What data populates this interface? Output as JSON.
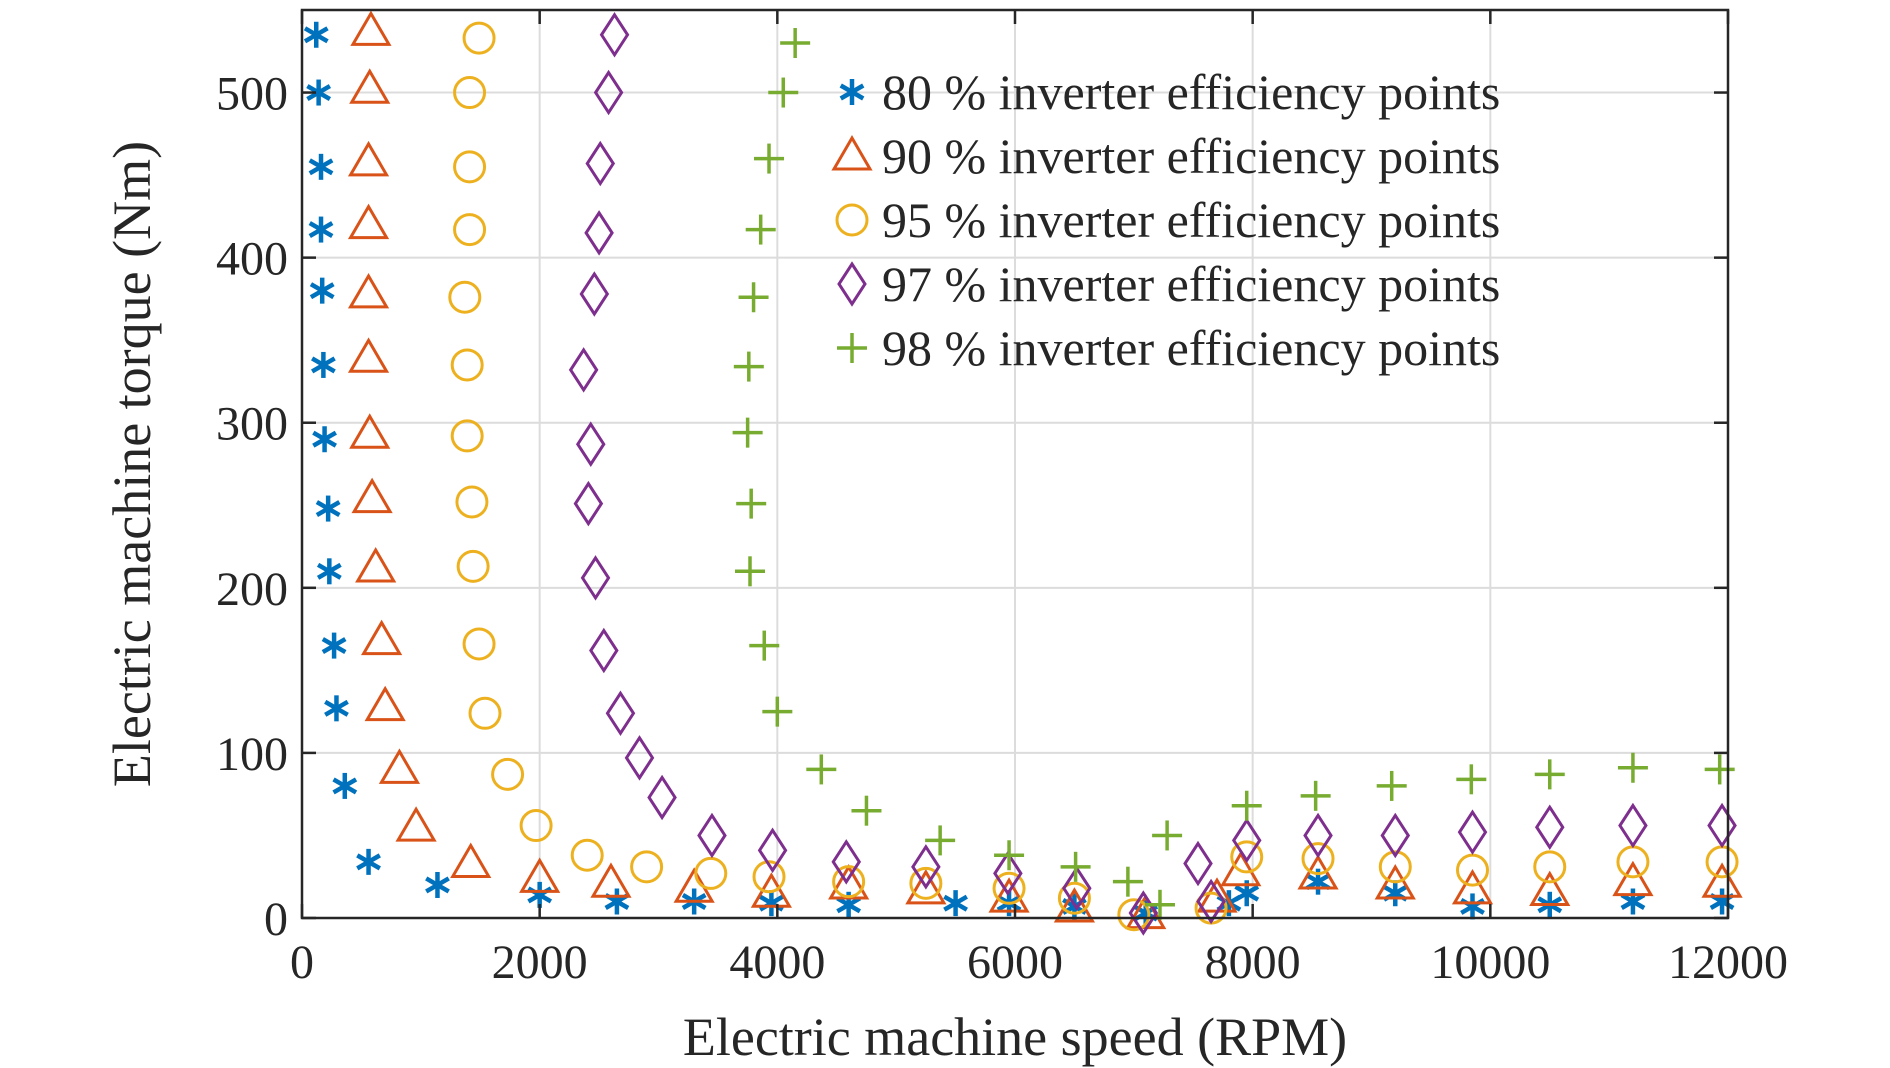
{
  "chart_data": {
    "type": "scatter",
    "xlabel": "Electric machine speed (RPM)",
    "ylabel": "Electric machine torque (Nm)",
    "xlim": [
      0,
      12000
    ],
    "ylim": [
      0,
      550
    ],
    "xticks": [
      0,
      2000,
      4000,
      6000,
      8000,
      10000,
      12000
    ],
    "yticks": [
      0,
      100,
      200,
      300,
      400,
      500
    ],
    "xtick_labels": [
      "0",
      "2000",
      "4000",
      "6000",
      "8000",
      "10000",
      "12000"
    ],
    "ytick_labels": [
      "0",
      "100",
      "200",
      "300",
      "400",
      "500"
    ],
    "grid": true,
    "legend_position": "top-right",
    "series": [
      {
        "name": "80 % inverter efficiency points",
        "marker": "asterisk",
        "color": "#0072BD",
        "points": [
          [
            120,
            535
          ],
          [
            140,
            500
          ],
          [
            160,
            455
          ],
          [
            160,
            417
          ],
          [
            170,
            380
          ],
          [
            180,
            335
          ],
          [
            190,
            290
          ],
          [
            220,
            248
          ],
          [
            230,
            210
          ],
          [
            270,
            165
          ],
          [
            290,
            127
          ],
          [
            360,
            80
          ],
          [
            560,
            34
          ],
          [
            1140,
            20
          ],
          [
            2000,
            14
          ],
          [
            2650,
            10
          ],
          [
            3300,
            10
          ],
          [
            3950,
            9
          ],
          [
            4600,
            8
          ],
          [
            5500,
            9
          ],
          [
            5950,
            9
          ],
          [
            6500,
            7
          ],
          [
            7100,
            3
          ],
          [
            7800,
            9
          ],
          [
            7950,
            15
          ],
          [
            8550,
            22
          ],
          [
            9200,
            15
          ],
          [
            9850,
            7
          ],
          [
            10500,
            8
          ],
          [
            11200,
            10
          ],
          [
            11950,
            10
          ]
        ]
      },
      {
        "name": "90 % inverter efficiency points",
        "marker": "triangle",
        "color": "#D95319",
        "points": [
          [
            580,
            537
          ],
          [
            570,
            502
          ],
          [
            560,
            458
          ],
          [
            560,
            420
          ],
          [
            560,
            378
          ],
          [
            560,
            339
          ],
          [
            570,
            293
          ],
          [
            590,
            254
          ],
          [
            620,
            212
          ],
          [
            670,
            168
          ],
          [
            700,
            128
          ],
          [
            820,
            90
          ],
          [
            960,
            55
          ],
          [
            1420,
            33
          ],
          [
            2000,
            24
          ],
          [
            2600,
            21
          ],
          [
            3300,
            18
          ],
          [
            3950,
            15
          ],
          [
            4600,
            20
          ],
          [
            5250,
            17
          ],
          [
            5950,
            12
          ],
          [
            6500,
            6
          ],
          [
            7100,
            2
          ],
          [
            7700,
            12
          ],
          [
            7900,
            28
          ],
          [
            8550,
            26
          ],
          [
            9200,
            20
          ],
          [
            9850,
            17
          ],
          [
            10500,
            16
          ],
          [
            11200,
            22
          ],
          [
            11950,
            21
          ]
        ]
      },
      {
        "name": "95 % inverter efficiency points",
        "marker": "circle",
        "color": "#EDB120",
        "points": [
          [
            1490,
            533
          ],
          [
            1410,
            500
          ],
          [
            1410,
            455
          ],
          [
            1410,
            417
          ],
          [
            1370,
            376
          ],
          [
            1390,
            335
          ],
          [
            1390,
            292
          ],
          [
            1430,
            252
          ],
          [
            1440,
            213
          ],
          [
            1490,
            166
          ],
          [
            1540,
            124
          ],
          [
            1730,
            87
          ],
          [
            1970,
            56
          ],
          [
            2400,
            38
          ],
          [
            2900,
            31
          ],
          [
            3440,
            27
          ],
          [
            3930,
            25
          ],
          [
            4600,
            22
          ],
          [
            5250,
            21
          ],
          [
            5950,
            18
          ],
          [
            6500,
            12
          ],
          [
            7000,
            2
          ],
          [
            7650,
            6
          ],
          [
            7950,
            37
          ],
          [
            8550,
            36
          ],
          [
            9200,
            31
          ],
          [
            9850,
            29
          ],
          [
            10500,
            31
          ],
          [
            11200,
            34
          ],
          [
            11950,
            34
          ]
        ]
      },
      {
        "name": "97 % inverter efficiency points",
        "marker": "diamond",
        "color": "#7E2F8E",
        "points": [
          [
            2630,
            535
          ],
          [
            2580,
            500
          ],
          [
            2510,
            457
          ],
          [
            2500,
            415
          ],
          [
            2460,
            378
          ],
          [
            2370,
            332
          ],
          [
            2430,
            287
          ],
          [
            2410,
            251
          ],
          [
            2470,
            206
          ],
          [
            2540,
            162
          ],
          [
            2680,
            124
          ],
          [
            2840,
            97
          ],
          [
            3030,
            73
          ],
          [
            3450,
            50
          ],
          [
            3960,
            41
          ],
          [
            4580,
            34
          ],
          [
            5250,
            31
          ],
          [
            5940,
            27
          ],
          [
            6520,
            18
          ],
          [
            7080,
            3
          ],
          [
            7540,
            33
          ],
          [
            7650,
            10
          ],
          [
            7950,
            47
          ],
          [
            8550,
            50
          ],
          [
            9200,
            50
          ],
          [
            9850,
            52
          ],
          [
            10500,
            55
          ],
          [
            11200,
            56
          ],
          [
            11950,
            56
          ]
        ]
      },
      {
        "name": "98 % inverter efficiency points",
        "marker": "plus",
        "color": "#77AC30",
        "points": [
          [
            4150,
            530
          ],
          [
            4050,
            500
          ],
          [
            3930,
            460
          ],
          [
            3860,
            417
          ],
          [
            3800,
            376
          ],
          [
            3760,
            334
          ],
          [
            3750,
            294
          ],
          [
            3780,
            251
          ],
          [
            3770,
            210
          ],
          [
            3890,
            165
          ],
          [
            4000,
            125
          ],
          [
            4370,
            90
          ],
          [
            4750,
            65
          ],
          [
            5370,
            47
          ],
          [
            5950,
            38
          ],
          [
            6510,
            31
          ],
          [
            6950,
            22
          ],
          [
            7280,
            50
          ],
          [
            7220,
            8
          ],
          [
            7950,
            68
          ],
          [
            8530,
            74
          ],
          [
            9170,
            80
          ],
          [
            9840,
            84
          ],
          [
            10500,
            87
          ],
          [
            11200,
            91
          ],
          [
            11930,
            90
          ]
        ]
      }
    ]
  }
}
